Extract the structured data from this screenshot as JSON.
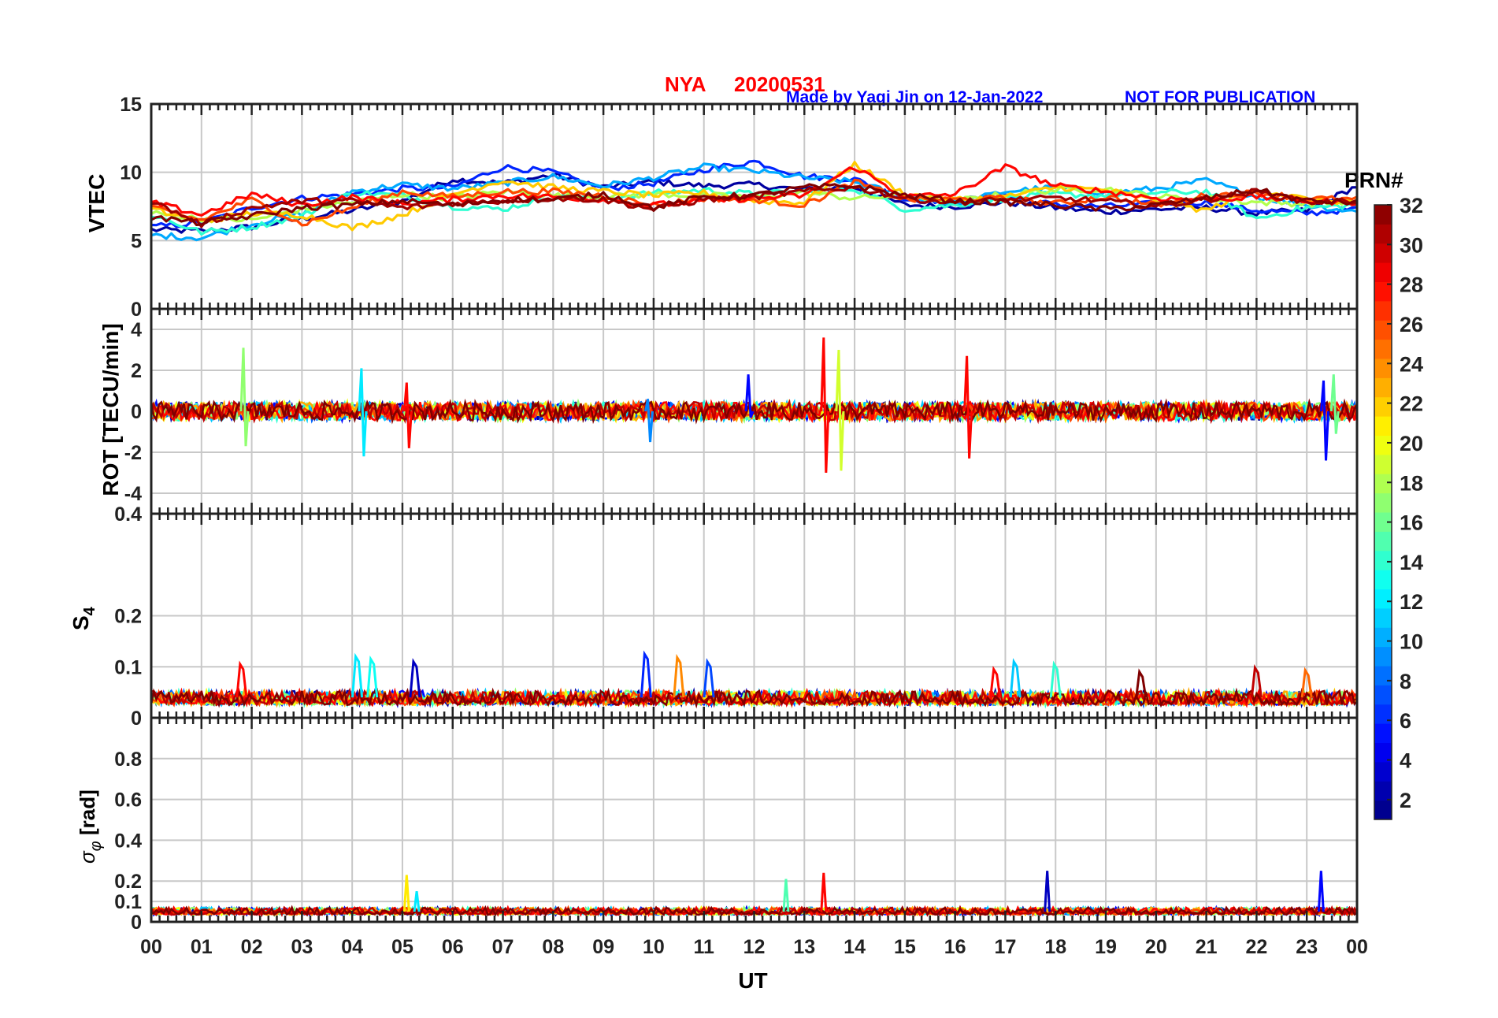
{
  "figure": {
    "station": "NYA",
    "date": "20200531",
    "credit": "Made by Yaqi Jin on 12-Jan-2022",
    "notice": "NOT FOR PUBLICATION",
    "colors": {
      "title": "#ff0000",
      "credit": "#0000ff",
      "grid": "#c8c8c8",
      "axis": "#222222"
    }
  },
  "colorbar": {
    "title": "PRN#",
    "min": 1,
    "max": 32,
    "ticks": [
      "2",
      "4",
      "6",
      "8",
      "10",
      "12",
      "14",
      "16",
      "18",
      "20",
      "22",
      "24",
      "26",
      "28",
      "30",
      "32"
    ],
    "colormap": "jet"
  },
  "chart_data": [
    {
      "type": "line",
      "id": "vtec",
      "ylabel": "VTEC",
      "ylim": [
        0,
        15
      ],
      "yticks": [
        0,
        5,
        10,
        15
      ],
      "xlabel": "",
      "xlim": [
        0,
        24
      ],
      "series_description": "VTEC per satellite PRN, colored by PRN",
      "series": [
        {
          "name": "PRN 2",
          "x": [
            0,
            1,
            2,
            3,
            4,
            5,
            6,
            7,
            8,
            9,
            10,
            11,
            12,
            13,
            14,
            15,
            16,
            17,
            18,
            19,
            20,
            21,
            22,
            23,
            24
          ],
          "values": [
            5.8,
            5.7,
            6.0,
            6.6,
            7.2,
            7.9,
            9.5,
            9.2,
            9.8,
            8.9,
            9.3,
            9.0,
            9.1,
            8.7,
            8.9,
            7.6,
            7.5,
            7.8,
            7.4,
            7.1,
            7.3,
            7.4,
            7.0,
            7.2,
            9.0
          ]
        },
        {
          "name": "PRN 6",
          "x": [
            0,
            1,
            2,
            3,
            4,
            5,
            6,
            7,
            8,
            9,
            10,
            11,
            12,
            13,
            14,
            15,
            16,
            17,
            18,
            19,
            20,
            21,
            22,
            23,
            24
          ],
          "values": [
            6.0,
            6.3,
            7.4,
            8.1,
            8.4,
            8.8,
            8.9,
            10.4,
            10.0,
            8.8,
            9.2,
            10.2,
            10.8,
            9.7,
            9.5,
            8.0,
            7.9,
            8.3,
            7.6,
            7.5,
            7.7,
            7.8,
            7.2,
            7.0,
            7.3
          ]
        },
        {
          "name": "PRN 10",
          "x": [
            0,
            1,
            2,
            3,
            4,
            5,
            6,
            7,
            8,
            9,
            10,
            11,
            12,
            13,
            14,
            15,
            16,
            17,
            18,
            19,
            20,
            21,
            22,
            23,
            24
          ],
          "values": [
            5.4,
            5.2,
            6.2,
            7.0,
            8.6,
            9.1,
            8.8,
            9.2,
            9.7,
            9.0,
            9.6,
            10.4,
            10.1,
            9.6,
            9.3,
            8.2,
            7.7,
            8.6,
            8.9,
            8.5,
            8.8,
            9.4,
            8.2,
            7.6,
            7.1
          ]
        },
        {
          "name": "PRN 14",
          "x": [
            0,
            1,
            2,
            3,
            4,
            5,
            6,
            7,
            8,
            9,
            10,
            11,
            12,
            13,
            14,
            15,
            16,
            17,
            18,
            19,
            20,
            21,
            22,
            23,
            24
          ],
          "values": [
            6.9,
            5.6,
            6.0,
            6.8,
            8.5,
            8.3,
            7.5,
            7.3,
            8.2,
            8.1,
            8.5,
            8.7,
            8.4,
            8.6,
            8.8,
            7.3,
            7.6,
            8.1,
            8.4,
            8.3,
            8.5,
            8.6,
            6.6,
            7.4,
            7.6
          ]
        },
        {
          "name": "PRN 18",
          "x": [
            0,
            1,
            2,
            3,
            4,
            5,
            6,
            7,
            8,
            9,
            10,
            11,
            12,
            13,
            14,
            15,
            16,
            17,
            18,
            19,
            20,
            21,
            22,
            23,
            24
          ],
          "values": [
            7.0,
            6.6,
            6.5,
            7.3,
            7.8,
            8.4,
            8.1,
            8.6,
            8.3,
            8.2,
            8.4,
            8.3,
            8.2,
            8.5,
            8.1,
            8.3,
            7.9,
            8.4,
            8.7,
            8.8,
            8.2,
            8.1,
            7.8,
            7.7,
            7.9
          ]
        },
        {
          "name": "PRN 22",
          "x": [
            0,
            1,
            2,
            3,
            4,
            5,
            6,
            7,
            8,
            9,
            10,
            11,
            12,
            13,
            14,
            15,
            16,
            17,
            18,
            19,
            20,
            21,
            22,
            23,
            24
          ],
          "values": [
            7.3,
            6.4,
            7.0,
            6.9,
            5.9,
            6.9,
            8.4,
            9.4,
            8.9,
            8.6,
            8.3,
            8.5,
            7.9,
            7.8,
            10.6,
            8.4,
            8.0,
            8.2,
            8.9,
            8.7,
            7.9,
            7.2,
            8.8,
            8.0,
            7.8
          ]
        },
        {
          "name": "PRN 26",
          "x": [
            0,
            1,
            2,
            3,
            4,
            5,
            6,
            7,
            8,
            9,
            10,
            11,
            12,
            13,
            14,
            15,
            16,
            17,
            18,
            19,
            20,
            21,
            22,
            23,
            24
          ],
          "values": [
            7.4,
            6.5,
            8.0,
            6.2,
            7.4,
            8.6,
            8.2,
            8.6,
            8.6,
            8.3,
            7.6,
            8.1,
            8.0,
            7.6,
            9.3,
            8.0,
            8.0,
            8.1,
            7.7,
            8.2,
            7.6,
            8.3,
            8.5,
            8.1,
            8.0
          ]
        },
        {
          "name": "PRN 28",
          "x": [
            0,
            1,
            2,
            3,
            4,
            5,
            6,
            7,
            8,
            9,
            10,
            11,
            12,
            13,
            14,
            15,
            16,
            17,
            18,
            19,
            20,
            21,
            22,
            23,
            24
          ],
          "values": [
            7.8,
            6.9,
            8.4,
            7.6,
            8.2,
            7.7,
            8.0,
            8.3,
            8.2,
            8.0,
            7.6,
            7.9,
            8.1,
            8.3,
            10.4,
            8.2,
            8.4,
            10.4,
            9.0,
            8.6,
            8.1,
            8.0,
            8.2,
            7.9,
            7.8
          ]
        },
        {
          "name": "PRN 31",
          "x": [
            0,
            1,
            2,
            3,
            4,
            5,
            6,
            7,
            8,
            9,
            10,
            11,
            12,
            13,
            14,
            15,
            16,
            17,
            18,
            19,
            20,
            21,
            22,
            23,
            24
          ],
          "values": [
            7.9,
            6.2,
            7.4,
            7.9,
            7.9,
            7.4,
            7.7,
            7.9,
            8.1,
            8.0,
            7.3,
            8.0,
            8.2,
            8.6,
            8.9,
            8.1,
            7.8,
            8.0,
            8.1,
            7.9,
            7.5,
            8.0,
            8.6,
            7.8,
            7.9
          ]
        },
        {
          "name": "PRN 32",
          "x": [
            0,
            1,
            2,
            3,
            4,
            5,
            6,
            7,
            8,
            9,
            10,
            11,
            12,
            13,
            14,
            15,
            16,
            17,
            18,
            19,
            20,
            21,
            22,
            23,
            24
          ],
          "values": [
            6.7,
            6.3,
            6.8,
            7.4,
            7.6,
            7.9,
            7.6,
            8.0,
            8.0,
            8.4,
            7.4,
            8.2,
            8.3,
            8.9,
            9.0,
            8.3,
            7.9,
            7.8,
            7.6,
            7.3,
            7.6,
            8.1,
            8.7,
            7.9,
            7.8
          ]
        }
      ]
    },
    {
      "type": "line",
      "id": "rot",
      "ylabel": "ROT [TECU/min]",
      "ylim": [
        -5,
        5
      ],
      "yticks": [
        -4,
        -2,
        0,
        2,
        4
      ],
      "xlim": [
        0,
        24
      ],
      "series_description": "Rate of TEC per satellite PRN, mostly within +/-1 with spikes",
      "spikes": [
        {
          "x": 1.85,
          "min": -1.7,
          "max": 3.1,
          "prn": 17
        },
        {
          "x": 4.2,
          "min": -2.2,
          "max": 2.1,
          "prn": 12
        },
        {
          "x": 5.1,
          "min": -1.8,
          "max": 1.4,
          "prn": 28
        },
        {
          "x": 9.9,
          "min": -1.5,
          "max": 0.6,
          "prn": 9
        },
        {
          "x": 11.9,
          "min": -0.3,
          "max": 1.8,
          "prn": 5
        },
        {
          "x": 13.4,
          "min": -3.0,
          "max": 3.6,
          "prn": 28
        },
        {
          "x": 13.7,
          "min": -2.9,
          "max": 3.0,
          "prn": 19
        },
        {
          "x": 16.25,
          "min": -2.3,
          "max": 2.7,
          "prn": 28
        },
        {
          "x": 23.35,
          "min": -2.4,
          "max": 1.5,
          "prn": 5
        },
        {
          "x": 23.55,
          "min": -1.1,
          "max": 1.8,
          "prn": 16
        }
      ]
    },
    {
      "type": "line",
      "id": "s4",
      "ylabel": "S4",
      "ylim": [
        0,
        0.4
      ],
      "yticks": [
        0,
        0.1,
        0.2,
        0.4
      ],
      "xlim": [
        0,
        24
      ],
      "baseline": 0.04,
      "spikes": [
        {
          "x": 1.8,
          "max": 0.105,
          "prn": 28
        },
        {
          "x": 4.1,
          "max": 0.12,
          "prn": 12
        },
        {
          "x": 4.4,
          "max": 0.115,
          "prn": 13
        },
        {
          "x": 5.25,
          "max": 0.11,
          "prn": 3
        },
        {
          "x": 9.85,
          "max": 0.125,
          "prn": 6
        },
        {
          "x": 10.5,
          "max": 0.118,
          "prn": 24
        },
        {
          "x": 11.1,
          "max": 0.11,
          "prn": 7
        },
        {
          "x": 16.8,
          "max": 0.095,
          "prn": 28
        },
        {
          "x": 17.2,
          "max": 0.11,
          "prn": 11
        },
        {
          "x": 18.0,
          "max": 0.105,
          "prn": 14
        },
        {
          "x": 19.7,
          "max": 0.09,
          "prn": 32
        },
        {
          "x": 22.0,
          "max": 0.098,
          "prn": 30
        },
        {
          "x": 23.0,
          "max": 0.093,
          "prn": 25
        }
      ]
    },
    {
      "type": "line",
      "id": "sigma-phi",
      "ylabel": "σφ [rad]",
      "ylim": [
        0,
        1
      ],
      "yticks": [
        0,
        0.1,
        0.2,
        0.4,
        0.6,
        0.8
      ],
      "xlabel": "UT",
      "xlim": [
        0,
        24
      ],
      "xticks": [
        "00",
        "01",
        "02",
        "03",
        "04",
        "05",
        "06",
        "07",
        "08",
        "09",
        "10",
        "11",
        "12",
        "13",
        "14",
        "15",
        "16",
        "17",
        "18",
        "19",
        "20",
        "21",
        "22",
        "23",
        "00"
      ],
      "baseline": 0.05,
      "spikes": [
        {
          "x": 5.1,
          "max": 0.23,
          "prn": 21
        },
        {
          "x": 5.3,
          "max": 0.15,
          "prn": 12
        },
        {
          "x": 12.65,
          "max": 0.21,
          "prn": 15
        },
        {
          "x": 13.4,
          "max": 0.24,
          "prn": 28
        },
        {
          "x": 17.85,
          "max": 0.25,
          "prn": 3
        },
        {
          "x": 23.3,
          "max": 0.25,
          "prn": 5
        }
      ]
    }
  ],
  "labels": {
    "ylabel_vtec": "VTEC",
    "ylabel_rot": "ROT [TECU/min]",
    "ylabel_s4_main": "S",
    "ylabel_s4_sub": "4",
    "ylabel_sig_main": "σ",
    "ylabel_sig_sub": "φ",
    "ylabel_sig_unit": " [rad]",
    "xlabel": "UT",
    "vtec_ticks": [
      "0",
      "5",
      "10",
      "15"
    ],
    "rot_ticks": [
      "4",
      "2",
      "0",
      "-2",
      "-4"
    ],
    "s4_ticks": [
      "0.4",
      "0.2",
      "0.1",
      "0"
    ],
    "sig_ticks": [
      "0.8",
      "0.6",
      "0.4",
      "0.2",
      "0.1",
      "0"
    ]
  }
}
